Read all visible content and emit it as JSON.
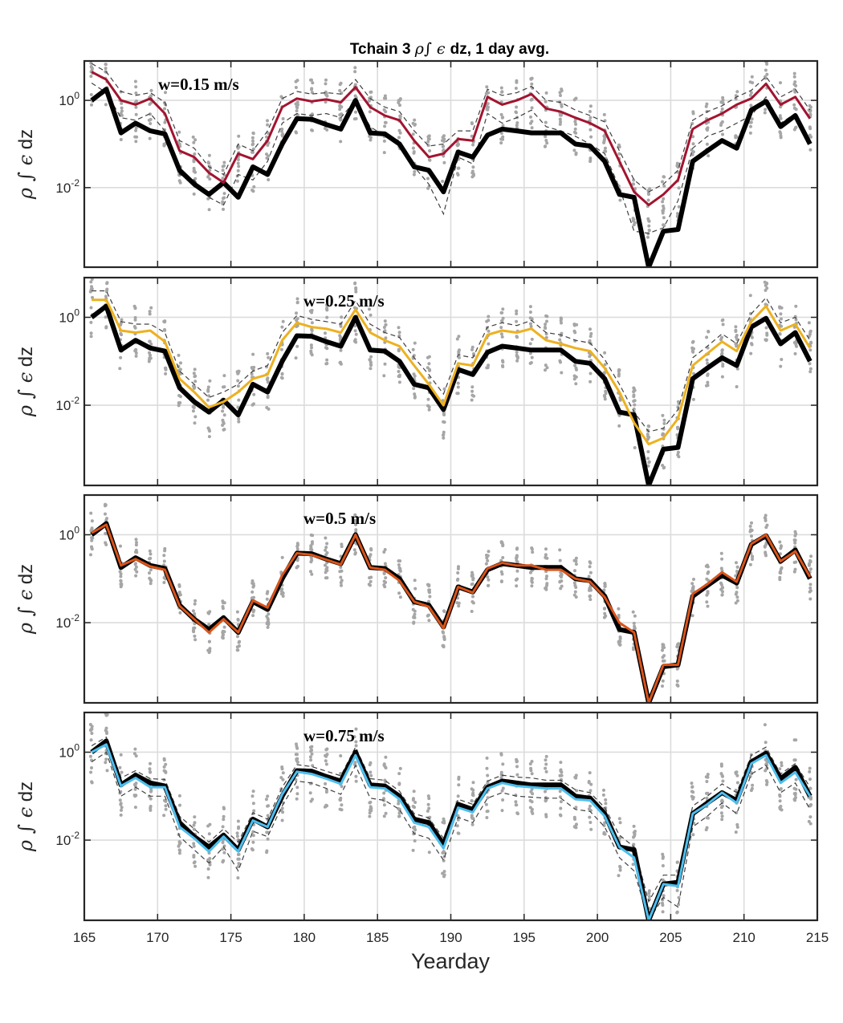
{
  "chart_data": {
    "type": "line",
    "title": "Tchain 3 ρ∫ ϵ dz, 1 day avg.",
    "xlabel": "Yearday",
    "ylabel": "ρ ∫ ϵ dz",
    "xlim": [
      165,
      215
    ],
    "ylim": [
      0.00015,
      8
    ],
    "yscale": "log",
    "xticks": [
      165,
      170,
      175,
      180,
      185,
      190,
      195,
      200,
      205,
      210,
      215
    ],
    "yticks": [
      {
        "value": 1,
        "label": "10^0"
      },
      {
        "value": 0.01,
        "label": "10^-2"
      }
    ],
    "grid": true,
    "base_series": {
      "name": "",
      "color": "#000000",
      "x": [
        165.5,
        166.5,
        167.5,
        168.5,
        169.5,
        170.5,
        171.5,
        172.5,
        173.5,
        174.5,
        175.5,
        176.5,
        177.5,
        178.5,
        179.5,
        180.5,
        181.5,
        182.5,
        183.5,
        184.5,
        185.5,
        186.5,
        187.5,
        188.5,
        189.5,
        190.5,
        191.5,
        192.5,
        193.5,
        194.5,
        195.5,
        196.5,
        197.5,
        198.5,
        199.5,
        200.5,
        201.5,
        202.5,
        203.5,
        204.5,
        205.5,
        206.5,
        207.5,
        208.5,
        209.5,
        210.5,
        211.5,
        212.5,
        213.5,
        214.5
      ],
      "y": [
        1.0,
        1.8,
        0.18,
        0.3,
        0.2,
        0.17,
        0.025,
        0.012,
        0.007,
        0.013,
        0.006,
        0.03,
        0.02,
        0.1,
        0.38,
        0.37,
        0.28,
        0.22,
        1.0,
        0.18,
        0.17,
        0.1,
        0.03,
        0.025,
        0.008,
        0.065,
        0.05,
        0.16,
        0.22,
        0.2,
        0.18,
        0.18,
        0.18,
        0.1,
        0.09,
        0.04,
        0.007,
        0.006,
        0.00015,
        0.001,
        0.0011,
        0.04,
        0.07,
        0.12,
        0.08,
        0.6,
        0.95,
        0.25,
        0.45,
        0.1
      ]
    },
    "panels": [
      {
        "label": "w=0.15 m/s",
        "series": {
          "name": "",
          "color": "#A2142F",
          "y": [
            4.5,
            3.0,
            1.0,
            0.8,
            1.1,
            0.5,
            0.07,
            0.05,
            0.022,
            0.013,
            0.06,
            0.045,
            0.12,
            0.7,
            1.1,
            0.95,
            1.05,
            0.9,
            2.0,
            0.7,
            0.45,
            0.35,
            0.12,
            0.05,
            0.06,
            0.13,
            0.12,
            1.2,
            0.8,
            1.0,
            1.4,
            0.65,
            0.55,
            0.4,
            0.3,
            0.2,
            0.04,
            0.008,
            0.004,
            0.007,
            0.015,
            0.22,
            0.35,
            0.5,
            0.8,
            1.1,
            2.4,
            0.8,
            1.2,
            0.38
          ]
        },
        "upper": [
          7.0,
          4.5,
          1.6,
          1.3,
          1.5,
          0.9,
          0.12,
          0.08,
          0.03,
          0.02,
          0.1,
          0.07,
          0.2,
          1.1,
          1.6,
          1.4,
          1.5,
          1.4,
          3.0,
          1.1,
          0.7,
          0.55,
          0.2,
          0.09,
          0.1,
          0.2,
          0.2,
          1.8,
          1.3,
          1.5,
          2.1,
          1.0,
          0.9,
          0.6,
          0.45,
          0.32,
          0.07,
          0.015,
          0.008,
          0.012,
          0.025,
          0.35,
          0.55,
          0.75,
          1.2,
          1.7,
          3.5,
          1.2,
          1.8,
          0.6
        ],
        "lower": [
          2.5,
          1.5,
          0.4,
          0.35,
          0.5,
          0.2,
          0.02,
          0.015,
          0.006,
          0.004,
          0.02,
          0.015,
          0.04,
          0.3,
          0.5,
          0.45,
          0.5,
          0.4,
          1.0,
          0.25,
          0.15,
          0.12,
          0.03,
          0.012,
          0.0025,
          0.05,
          0.035,
          0.5,
          0.3,
          0.4,
          0.6,
          0.25,
          0.2,
          0.15,
          0.1,
          0.06,
          0.01,
          0.001,
          0.0009,
          0.0012,
          0.005,
          0.08,
          0.15,
          0.2,
          0.3,
          0.45,
          1.2,
          0.3,
          0.5,
          0.12
        ]
      },
      {
        "label": "w=0.25 m/s",
        "series": {
          "name": "",
          "color": "#EDB120",
          "y": [
            2.5,
            2.5,
            0.5,
            0.45,
            0.5,
            0.28,
            0.04,
            0.02,
            0.009,
            0.012,
            0.02,
            0.04,
            0.05,
            0.3,
            0.75,
            0.6,
            0.55,
            0.45,
            1.5,
            0.45,
            0.3,
            0.22,
            0.08,
            0.03,
            0.01,
            0.09,
            0.08,
            0.4,
            0.5,
            0.45,
            0.55,
            0.3,
            0.25,
            0.2,
            0.17,
            0.07,
            0.02,
            0.004,
            0.0013,
            0.0018,
            0.005,
            0.08,
            0.15,
            0.28,
            0.17,
            0.8,
            1.8,
            0.5,
            0.7,
            0.2
          ]
        },
        "upper": [
          4.0,
          4.0,
          0.8,
          0.7,
          0.7,
          0.45,
          0.06,
          0.03,
          0.015,
          0.02,
          0.03,
          0.06,
          0.08,
          0.45,
          1.1,
          0.9,
          0.8,
          0.7,
          2.4,
          0.7,
          0.45,
          0.35,
          0.12,
          0.05,
          0.018,
          0.14,
          0.12,
          0.6,
          0.75,
          0.65,
          0.85,
          0.45,
          0.4,
          0.3,
          0.26,
          0.11,
          0.03,
          0.007,
          0.0025,
          0.003,
          0.008,
          0.12,
          0.22,
          0.42,
          0.25,
          1.2,
          2.8,
          0.75,
          1.0,
          0.3
        ]
      },
      {
        "label": "w=0.5 m/s",
        "series": {
          "name": "",
          "color": "#D95319",
          "y": [
            1.1,
            1.7,
            0.2,
            0.28,
            0.19,
            0.16,
            0.024,
            0.012,
            0.006,
            0.012,
            0.006,
            0.032,
            0.022,
            0.12,
            0.38,
            0.35,
            0.27,
            0.21,
            1.0,
            0.18,
            0.16,
            0.09,
            0.03,
            0.023,
            0.0075,
            0.065,
            0.048,
            0.17,
            0.23,
            0.2,
            0.2,
            0.16,
            0.16,
            0.1,
            0.085,
            0.038,
            0.01,
            0.006,
            0.00015,
            0.0011,
            0.0011,
            0.045,
            0.075,
            0.14,
            0.085,
            0.62,
            1.0,
            0.25,
            0.42,
            0.11
          ]
        }
      },
      {
        "label": "w=0.75 m/s",
        "series": {
          "name": "",
          "color": "#4DBEEE",
          "y": [
            1.0,
            1.5,
            0.17,
            0.26,
            0.16,
            0.16,
            0.02,
            0.011,
            0.0055,
            0.012,
            0.0055,
            0.028,
            0.02,
            0.11,
            0.36,
            0.32,
            0.25,
            0.19,
            0.85,
            0.16,
            0.15,
            0.085,
            0.025,
            0.02,
            0.0065,
            0.055,
            0.043,
            0.15,
            0.2,
            0.17,
            0.16,
            0.15,
            0.15,
            0.085,
            0.08,
            0.035,
            0.007,
            0.004,
            0.00015,
            0.001,
            0.0009,
            0.04,
            0.065,
            0.12,
            0.07,
            0.55,
            0.85,
            0.2,
            0.35,
            0.1
          ]
        },
        "upper": [
          1.4,
          2.2,
          0.26,
          0.38,
          0.25,
          0.24,
          0.035,
          0.018,
          0.009,
          0.018,
          0.009,
          0.042,
          0.03,
          0.16,
          0.52,
          0.47,
          0.37,
          0.29,
          1.3,
          0.25,
          0.23,
          0.13,
          0.04,
          0.032,
          0.011,
          0.085,
          0.065,
          0.22,
          0.3,
          0.27,
          0.26,
          0.23,
          0.23,
          0.14,
          0.12,
          0.055,
          0.013,
          0.007,
          0.0004,
          0.0016,
          0.0016,
          0.06,
          0.1,
          0.19,
          0.12,
          0.85,
          1.3,
          0.32,
          0.55,
          0.16
        ],
        "lower": [
          0.6,
          1.0,
          0.1,
          0.16,
          0.1,
          0.1,
          0.012,
          0.006,
          0.003,
          0.007,
          0.002,
          0.016,
          0.012,
          0.06,
          0.22,
          0.2,
          0.15,
          0.11,
          0.5,
          0.09,
          0.08,
          0.05,
          0.014,
          0.011,
          0.0035,
          0.033,
          0.025,
          0.09,
          0.12,
          0.1,
          0.095,
          0.09,
          0.09,
          0.05,
          0.045,
          0.02,
          0.004,
          0.002,
          0.00015,
          0.0005,
          0.0003,
          0.02,
          0.035,
          0.07,
          0.04,
          0.32,
          0.5,
          0.12,
          0.2,
          0.05
        ]
      }
    ]
  }
}
